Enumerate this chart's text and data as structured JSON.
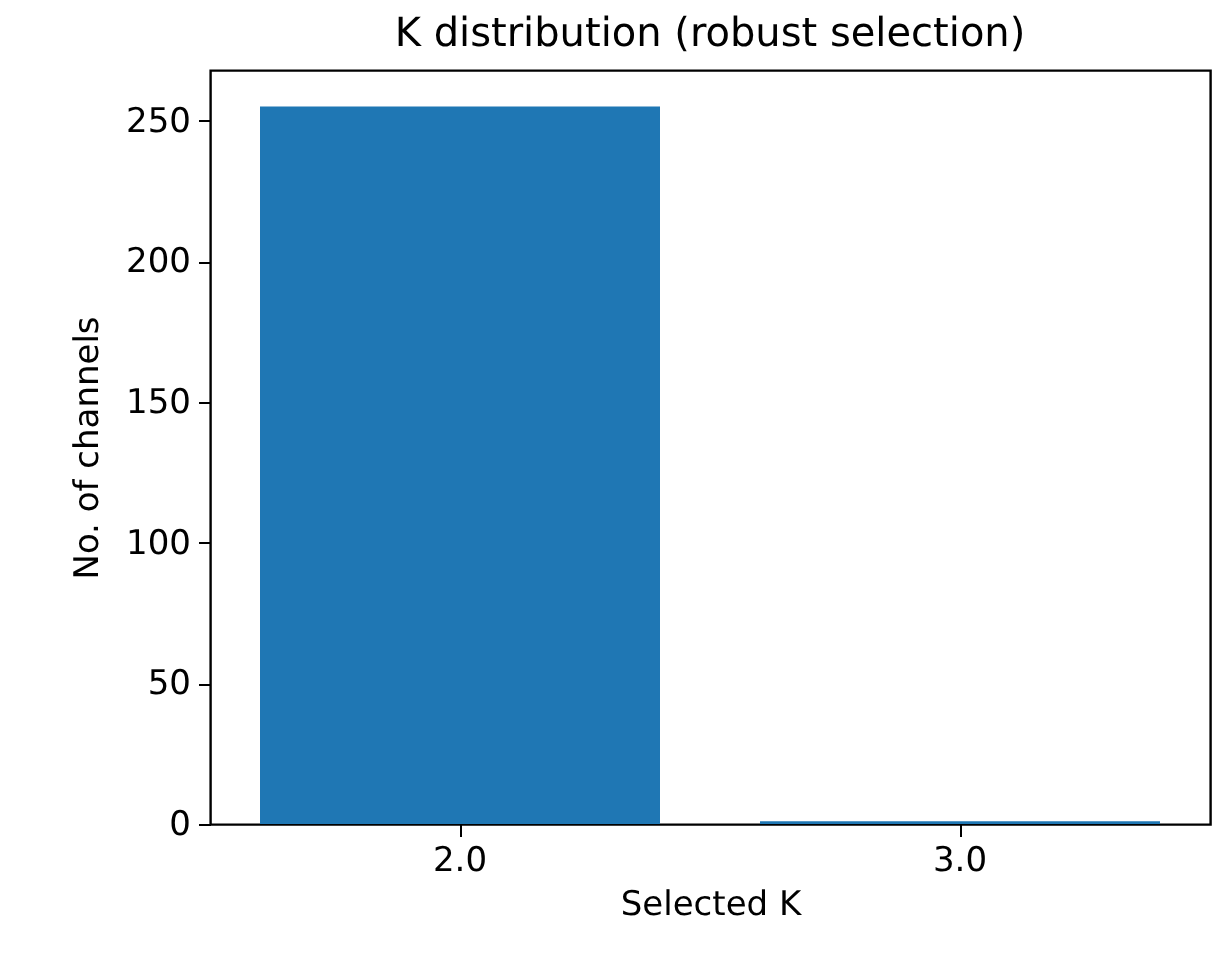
{
  "chart_data": {
    "type": "bar",
    "title": "K distribution (robust selection)",
    "xlabel": "Selected K",
    "ylabel": "No. of channels",
    "categories": [
      "2.0",
      "3.0"
    ],
    "values": [
      255,
      1
    ],
    "color": "#1f77b4",
    "ylim": [
      0,
      268
    ],
    "yticks": [
      0,
      50,
      100,
      150,
      200,
      250
    ],
    "grid": false
  }
}
